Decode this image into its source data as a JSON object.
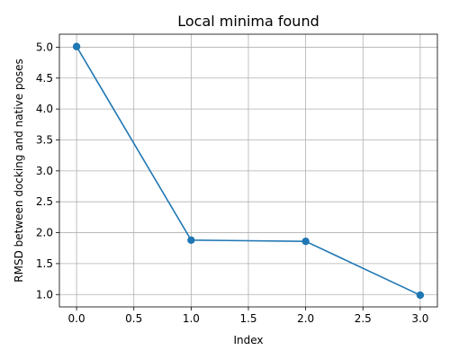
{
  "chart_data": {
    "type": "line",
    "title": "Local minima found",
    "xlabel": "Index",
    "ylabel": "RMSD between docking and native poses",
    "x": [
      0,
      1,
      2,
      3
    ],
    "series": [
      {
        "values": [
          5.01,
          1.88,
          1.86,
          0.99
        ],
        "color": "#1f77b4",
        "marker": "circle"
      }
    ],
    "xlim": [
      -0.15,
      3.15
    ],
    "ylim": [
      0.8,
      5.21
    ],
    "xticks": [
      0.0,
      0.5,
      1.0,
      1.5,
      2.0,
      2.5,
      3.0
    ],
    "xtick_labels": [
      "0.0",
      "0.5",
      "1.0",
      "1.5",
      "2.0",
      "2.5",
      "3.0"
    ],
    "yticks": [
      1.0,
      1.5,
      2.0,
      2.5,
      3.0,
      3.5,
      4.0,
      4.5,
      5.0
    ],
    "ytick_labels": [
      "1.0",
      "1.5",
      "2.0",
      "2.5",
      "3.0",
      "3.5",
      "4.0",
      "4.5",
      "5.0"
    ],
    "grid": true,
    "legend": "none"
  }
}
